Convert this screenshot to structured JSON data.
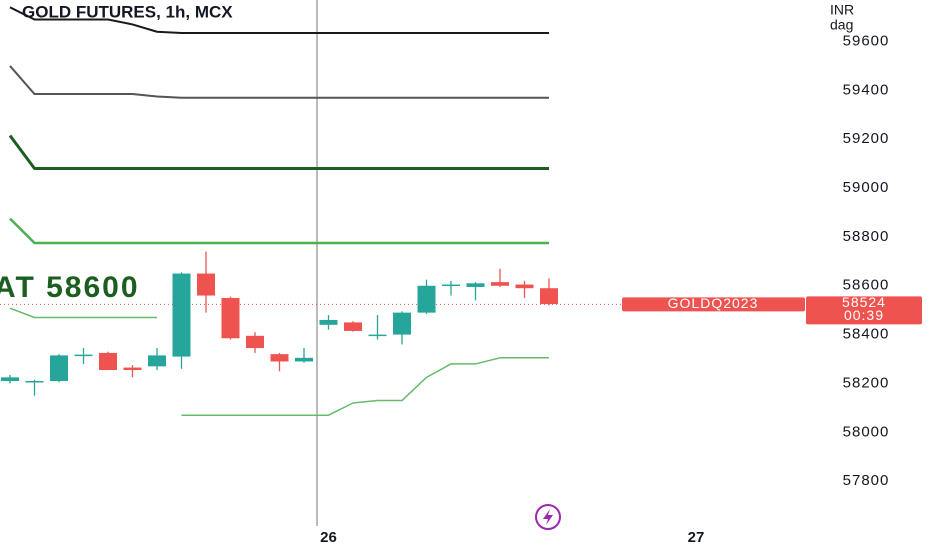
{
  "chart_data": {
    "type": "candlestick",
    "title": "GOLD FUTURES, 1h, MCX",
    "currency": "INR",
    "unit": "dag",
    "annotation": "AT 58600",
    "symbol_label": "GOLDQ2023",
    "last_price": 58524,
    "countdown": "00:39",
    "up_color": "#26a69a",
    "down_color": "#ef5350",
    "categories": [
      null,
      null,
      null,
      null,
      null,
      null,
      null,
      null,
      null,
      null,
      null,
      null,
      null,
      "26",
      null,
      null,
      null,
      null,
      null,
      null,
      null,
      null,
      null,
      null,
      null,
      null,
      null,
      null,
      "27"
    ],
    "open": [
      58210,
      58205,
      58210,
      58315,
      58325,
      58265,
      58270,
      58310,
      58650,
      58550,
      58395,
      58320,
      58290,
      58440,
      58450,
      58400,
      58400,
      58490,
      58600,
      58595,
      58615,
      58605,
      58590,
      null,
      null,
      null,
      null,
      null,
      null
    ],
    "high": [
      58235,
      58215,
      58320,
      58345,
      58330,
      58275,
      58345,
      58655,
      58740,
      58555,
      58410,
      58325,
      58345,
      58480,
      58455,
      58480,
      58495,
      58625,
      58620,
      58615,
      58670,
      58620,
      58630,
      null,
      null,
      null,
      null,
      null,
      null
    ],
    "low": [
      58200,
      58150,
      58205,
      58280,
      58255,
      58225,
      58255,
      58260,
      58490,
      58380,
      58325,
      58250,
      58285,
      58420,
      58412,
      58380,
      58360,
      58485,
      58560,
      58540,
      58595,
      58550,
      58520,
      null,
      null,
      null,
      null,
      null,
      null
    ],
    "close": [
      58225,
      58210,
      58315,
      58318,
      58255,
      58255,
      58315,
      58650,
      58560,
      58385,
      58345,
      58290,
      58305,
      58460,
      58415,
      58400,
      58490,
      58600,
      58605,
      58610,
      58600,
      58590,
      58525,
      null,
      null,
      null,
      null,
      null,
      null
    ],
    "overlays": [
      {
        "color": "#1a1a1a",
        "width": 2,
        "values": [
          59740,
          59690,
          59690,
          59690,
          59690,
          59670,
          59640,
          59635,
          59635,
          59635,
          59635,
          59635,
          59635,
          59635,
          59635,
          59635,
          59635,
          59635,
          59635,
          59635,
          59635,
          59635,
          59635,
          null,
          null,
          null,
          null,
          null,
          null
        ]
      },
      {
        "color": "#555555",
        "width": 2,
        "values": [
          59500,
          59385,
          59385,
          59385,
          59385,
          59385,
          59375,
          59370,
          59370,
          59370,
          59370,
          59370,
          59370,
          59370,
          59370,
          59370,
          59370,
          59370,
          59370,
          59370,
          59370,
          59370,
          59370,
          null,
          null,
          null,
          null,
          null,
          null
        ]
      },
      {
        "color": "#1b5e20",
        "width": 3,
        "values": [
          59215,
          59080,
          59080,
          59080,
          59080,
          59080,
          59080,
          59080,
          59080,
          59080,
          59080,
          59080,
          59080,
          59080,
          59080,
          59080,
          59080,
          59080,
          59080,
          59080,
          59080,
          59080,
          59080,
          null,
          null,
          null,
          null,
          null,
          null
        ]
      },
      {
        "color": "#4caf50",
        "width": 2.5,
        "values": [
          58875,
          58775,
          58775,
          58775,
          58775,
          58775,
          58775,
          58775,
          58775,
          58775,
          58775,
          58775,
          58775,
          58775,
          58775,
          58775,
          58775,
          58775,
          58775,
          58775,
          58775,
          58775,
          58775,
          null,
          null,
          null,
          null,
          null,
          null
        ]
      },
      {
        "color": "#66bb6a",
        "width": 1.5,
        "values": [
          58508,
          58470,
          58470,
          58470,
          58470,
          58470,
          58470,
          null,
          null,
          null,
          null,
          null,
          null,
          null,
          null,
          null,
          null,
          null,
          null,
          null,
          null,
          null,
          null,
          null,
          null,
          null,
          null,
          null,
          null
        ]
      },
      {
        "color": "#66bb6a",
        "width": 1.5,
        "values": [
          null,
          null,
          null,
          null,
          null,
          null,
          null,
          58070,
          58070,
          58070,
          58070,
          58070,
          58070,
          58070,
          58120,
          58130,
          58130,
          58225,
          58280,
          58280,
          58305,
          58305,
          58305,
          null,
          null,
          null,
          null,
          null,
          null
        ]
      }
    ],
    "ylim": [
      57600,
      59770
    ],
    "yticks": [
      57800,
      58000,
      58200,
      58400,
      58600,
      58800,
      59000,
      59200,
      59400,
      59600
    ]
  }
}
